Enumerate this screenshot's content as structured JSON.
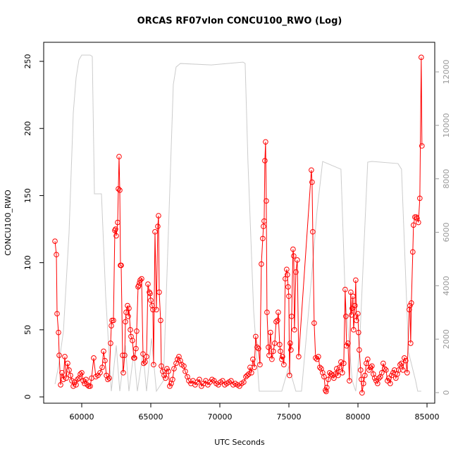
{
  "chart_data": {
    "type": "line",
    "title": "ORCAS RF07vlon CONCU100_RWO (Log)",
    "xlabel": "UTC Seconds",
    "ylabel": "CONCU100_RWO",
    "xlim": [
      57245,
      85560
    ],
    "xticks": [
      60000,
      65000,
      70000,
      75000,
      80000,
      85000
    ],
    "ylim": [
      -4.7,
      264.2
    ],
    "yticks": [
      0,
      50,
      100,
      150,
      200,
      250
    ],
    "y2lim": [
      -396,
      13108
    ],
    "y2ticks": [
      0,
      2000,
      4000,
      6000,
      8000,
      10000,
      12000
    ],
    "series": [
      {
        "color": "#ff0000",
        "markers": true,
        "x": [
          58062,
          58164,
          58215,
          58317,
          58368,
          58470,
          58572,
          58674,
          58776,
          58878,
          58980,
          59082,
          59184,
          59286,
          59388,
          59490,
          59592,
          59694,
          59796,
          59898,
          60000,
          60102,
          60204,
          60306,
          60408,
          60510,
          60612,
          60714,
          60867,
          61020,
          61173,
          61326,
          61479,
          61581,
          61683,
          61785,
          61887,
          61989,
          62091,
          62142,
          62193,
          62295,
          62397,
          62448,
          62499,
          62601,
          62652,
          62703,
          62754,
          62805,
          62856,
          62958,
          63009,
          63111,
          63162,
          63213,
          63315,
          63366,
          63417,
          63519,
          63570,
          63672,
          63774,
          63825,
          63927,
          63978,
          64080,
          64131,
          64182,
          64233,
          64335,
          64437,
          64488,
          64590,
          64692,
          64794,
          64896,
          64947,
          64998,
          65100,
          65151,
          65202,
          65304,
          65406,
          65508,
          65559,
          65610,
          65712,
          65763,
          65865,
          65967,
          66069,
          66171,
          66273,
          66375,
          66477,
          66579,
          66681,
          66834,
          66936,
          67038,
          67140,
          67242,
          67395,
          67497,
          67650,
          67752,
          67905,
          68058,
          68211,
          68364,
          68517,
          68670,
          68823,
          68976,
          69129,
          69282,
          69435,
          69588,
          69741,
          69894,
          70047,
          70200,
          70353,
          70506,
          70659,
          70812,
          70965,
          71118,
          71271,
          71424,
          71577,
          71730,
          71883,
          71985,
          72087,
          72189,
          72291,
          72393,
          72495,
          72597,
          72699,
          72801,
          72903,
          73005,
          73107,
          73158,
          73209,
          73260,
          73311,
          73362,
          73413,
          73515,
          73566,
          73668,
          73770,
          73872,
          73974,
          74076,
          74178,
          74229,
          74331,
          74382,
          74484,
          74535,
          74637,
          74739,
          74841,
          74892,
          74943,
          74994,
          75045,
          75096,
          75147,
          75198,
          75300,
          75351,
          75402,
          75504,
          75606,
          75708,
          76626,
          76677,
          76728,
          76830,
          76932,
          77034,
          77136,
          77238,
          77340,
          77442,
          77544,
          77646,
          77697,
          77748,
          77850,
          77952,
          78054,
          78156,
          78258,
          78360,
          78462,
          78564,
          78666,
          78768,
          78870,
          78972,
          79074,
          79125,
          79176,
          79278,
          79380,
          79482,
          79533,
          79584,
          79635,
          79686,
          79788,
          79839,
          79890,
          79992,
          80043,
          80094,
          80196,
          80247,
          80298,
          80400,
          80502,
          80604,
          80706,
          80808,
          80910,
          81012,
          81114,
          81216,
          81318,
          81420,
          81522,
          81624,
          81726,
          81828,
          81930,
          82032,
          82134,
          82236,
          82338,
          82440,
          82542,
          82644,
          82746,
          82848,
          82950,
          83052,
          83154,
          83256,
          83358,
          83460,
          83562,
          83715,
          83766,
          83817,
          83868,
          83970,
          84021,
          84123,
          84225,
          84276,
          84378,
          84480,
          84582,
          84633
        ],
        "values": [
          116,
          106,
          62,
          48,
          31,
          9,
          18,
          13,
          30,
          14,
          25,
          20,
          16,
          12,
          8,
          11,
          9,
          13,
          14,
          17,
          18,
          12,
          10,
          13,
          9,
          8,
          8,
          14,
          29,
          15,
          16,
          18,
          22,
          34,
          27,
          16,
          13,
          14,
          40,
          53,
          57,
          57,
          124,
          125,
          120,
          130,
          155,
          179,
          154,
          98,
          98,
          31,
          18,
          31,
          56,
          63,
          68,
          60,
          66,
          50,
          45,
          42,
          29,
          29,
          36,
          49,
          82,
          83,
          85,
          87,
          88,
          32,
          25,
          26,
          30,
          84,
          78,
          77,
          72,
          68,
          65,
          24,
          123,
          65,
          127,
          135,
          78,
          57,
          23,
          19,
          16,
          14,
          21,
          19,
          8,
          10,
          13,
          21,
          25,
          28,
          30,
          27,
          24,
          23,
          19,
          15,
          12,
          10,
          12,
          9,
          11,
          13,
          8,
          10,
          12,
          9,
          11,
          13,
          12,
          10,
          9,
          11,
          12,
          9,
          10,
          11,
          12,
          9,
          10,
          9,
          8,
          10,
          11,
          15,
          16,
          17,
          22,
          18,
          28,
          22,
          45,
          37,
          36,
          24,
          99,
          118,
          127,
          131,
          176,
          190,
          146,
          63,
          37,
          31,
          48,
          28,
          34,
          40,
          56,
          57,
          63,
          39,
          34,
          28,
          30,
          24,
          88,
          95,
          91,
          82,
          75,
          16,
          40,
          35,
          60,
          110,
          105,
          50,
          93,
          102,
          30,
          169,
          160,
          123,
          55,
          29,
          28,
          30,
          22,
          21,
          18,
          15,
          5,
          4,
          7,
          13,
          18,
          17,
          16,
          14,
          17,
          21,
          16,
          22,
          26,
          18,
          25,
          80,
          60,
          38,
          40,
          12,
          78,
          61,
          66,
          75,
          50,
          68,
          87,
          57,
          62,
          48,
          35,
          20,
          13,
          3,
          10,
          16,
          25,
          28,
          20,
          22,
          23,
          17,
          14,
          12,
          10,
          14,
          15,
          18,
          25,
          21,
          20,
          12,
          14,
          10,
          16,
          18,
          20,
          14,
          17,
          20,
          24,
          25,
          20,
          29,
          27,
          18,
          65,
          68,
          40,
          70,
          108,
          128,
          134,
          134,
          133,
          130,
          148,
          253,
          187
        ]
      },
      {
        "color": "#cccccc",
        "axis": "y2",
        "x": [
          58062,
          58317,
          58674,
          59082,
          59388,
          59592,
          59796,
          60000,
          60612,
          60765,
          60918,
          61428,
          61734,
          62142,
          62499,
          62754,
          63162,
          63417,
          63774,
          64029,
          64437,
          64692,
          65049,
          65406,
          65916,
          66324,
          66630,
          66834,
          67140,
          69384,
          71679,
          71832,
          72036,
          72444,
          72852,
          74484,
          74994,
          75504,
          75912,
          76524,
          77034,
          77442,
          78768,
          79074,
          79584,
          79839,
          80094,
          80706,
          81012,
          82899,
          83154,
          83664,
          84174,
          84327,
          84582
        ],
        "values": [
          316,
          976,
          2294,
          5986,
          10469,
          11787,
          12447,
          12631,
          12631,
          12578,
          7436,
          7436,
          3613,
          53,
          1767,
          53,
          1767,
          53,
          1503,
          53,
          1503,
          53,
          2030,
          53,
          448,
          6777,
          11524,
          12183,
          12315,
          12262,
          12367,
          12315,
          8623,
          3085,
          53,
          53,
          976,
          53,
          53,
          3613,
          6777,
          8649,
          8359,
          3613,
          448,
          53,
          1503,
          8623,
          8649,
          8570,
          8359,
          1503,
          448,
          53,
          53
        ]
      }
    ]
  }
}
